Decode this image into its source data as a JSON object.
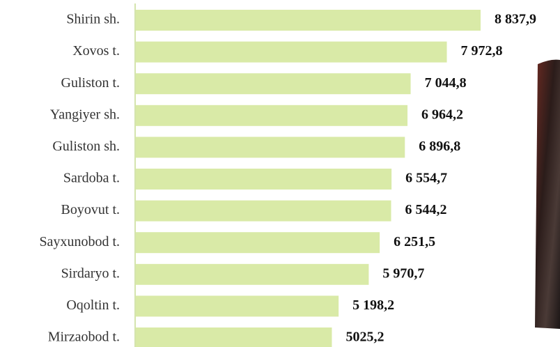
{
  "chart_data": {
    "type": "bar",
    "orientation": "horizontal",
    "color": "#d9eaa7",
    "categories": [
      "Shirin sh.",
      "Xovos t.",
      "Guliston t.",
      "Yangiyer sh.",
      "Guliston sh.",
      "Sardoba t.",
      "Boyovut t.",
      "Sayxunobod t.",
      "Sirdaryo t.",
      "Oqoltin t.",
      "Mirzaobod t."
    ],
    "values": [
      8837.9,
      7972.8,
      7044.8,
      6964.2,
      6896.8,
      6554.7,
      6544.2,
      6251.5,
      5970.7,
      5198.2,
      5025.2
    ],
    "value_labels": [
      "8 837,9",
      "7 972,8",
      "7 044,8",
      "6 964,2",
      "6 896,8",
      "6 554,7",
      "6 544,2",
      "6 251,5",
      "5 970,7",
      "5 198,2",
      "5025,2"
    ]
  }
}
